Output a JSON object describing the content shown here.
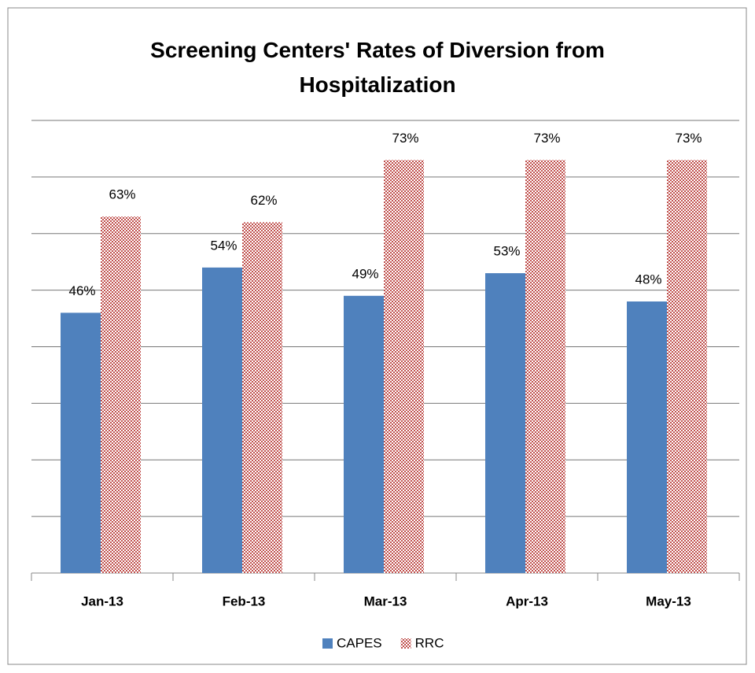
{
  "chart_data": {
    "type": "bar",
    "title": "Screening Centers' Rates of Diversion from Hospitalization",
    "categories": [
      "Jan-13",
      "Feb-13",
      "Mar-13",
      "Apr-13",
      "May-13"
    ],
    "series": [
      {
        "name": "CAPES",
        "color": "#4f81bd",
        "values": [
          46,
          54,
          49,
          53,
          48
        ],
        "value_labels": [
          "46%",
          "54%",
          "49%",
          "53%",
          "48%"
        ]
      },
      {
        "name": "RRC",
        "color": "#c0504d",
        "values": [
          63,
          62,
          73,
          73,
          73
        ],
        "value_labels": [
          "63%",
          "62%",
          "73%",
          "73%",
          "73%"
        ]
      }
    ],
    "ylim": [
      0,
      80
    ],
    "yticks": [
      0,
      10,
      20,
      30,
      40,
      50,
      60,
      70,
      80
    ],
    "grid": true,
    "legend": "bottom"
  }
}
